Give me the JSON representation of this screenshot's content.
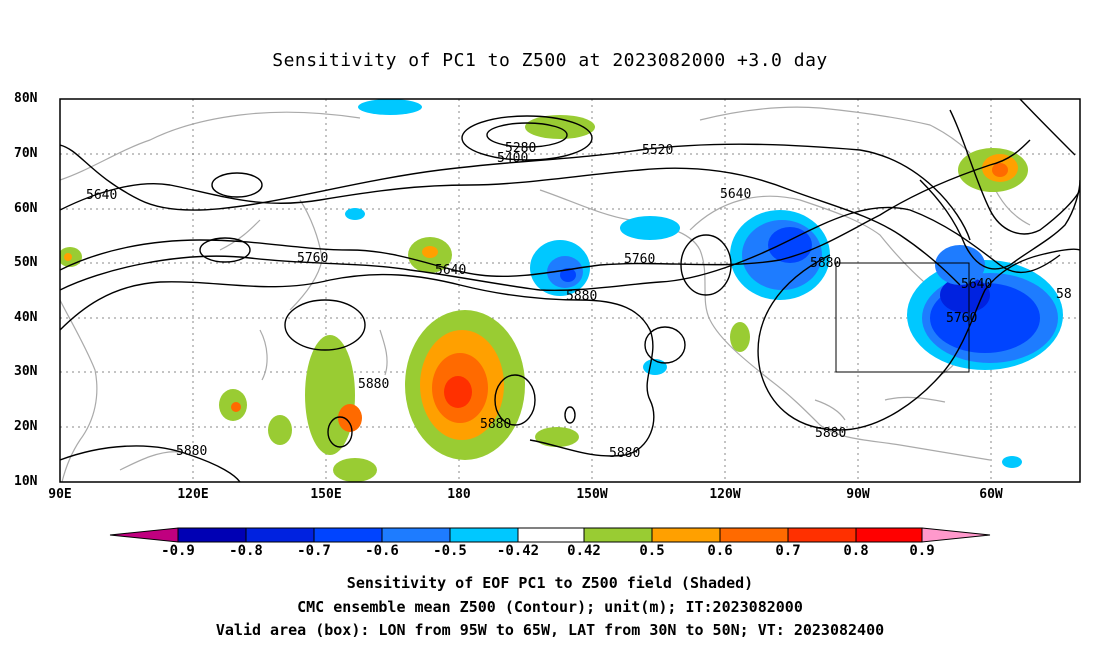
{
  "title": "Sensitivity of PC1 to Z500 at 2023082000 +3.0 day",
  "lat_ticks": [
    "80N",
    "70N",
    "60N",
    "50N",
    "40N",
    "30N",
    "20N",
    "10N"
  ],
  "lon_ticks": [
    "90E",
    "120E",
    "150E",
    "180",
    "150W",
    "120W",
    "90W",
    "60W"
  ],
  "contour_labels": [
    "5280",
    "5400",
    "5520",
    "5640",
    "5640",
    "5640",
    "5640",
    "5760",
    "5760",
    "5760",
    "5880",
    "5880",
    "5880",
    "5880",
    "5880",
    "5880",
    "5880",
    "58"
  ],
  "colorbar": {
    "labels": [
      "-0.9",
      "-0.8",
      "-0.7",
      "-0.6",
      "-0.5",
      "-0.42",
      "0.42",
      "0.5",
      "0.6",
      "0.7",
      "0.8",
      "0.9"
    ],
    "colors": [
      "#c0007f",
      "#0000b4",
      "#0022e0",
      "#0044ff",
      "#1e7cff",
      "#00c8ff",
      "#ffffff",
      "#99cc33",
      "#ffa000",
      "#ff6a00",
      "#ff3000",
      "#ff0000",
      "#ff99cc"
    ]
  },
  "captions": [
    "Sensitivity of EOF PC1 to Z500 field (Shaded)",
    "CMC ensemble mean Z500 (Contour); unit(m); IT:2023082000",
    "Valid area (box): LON from 95W to 65W, LAT from 30N to 50N; VT: 2023082400"
  ]
}
